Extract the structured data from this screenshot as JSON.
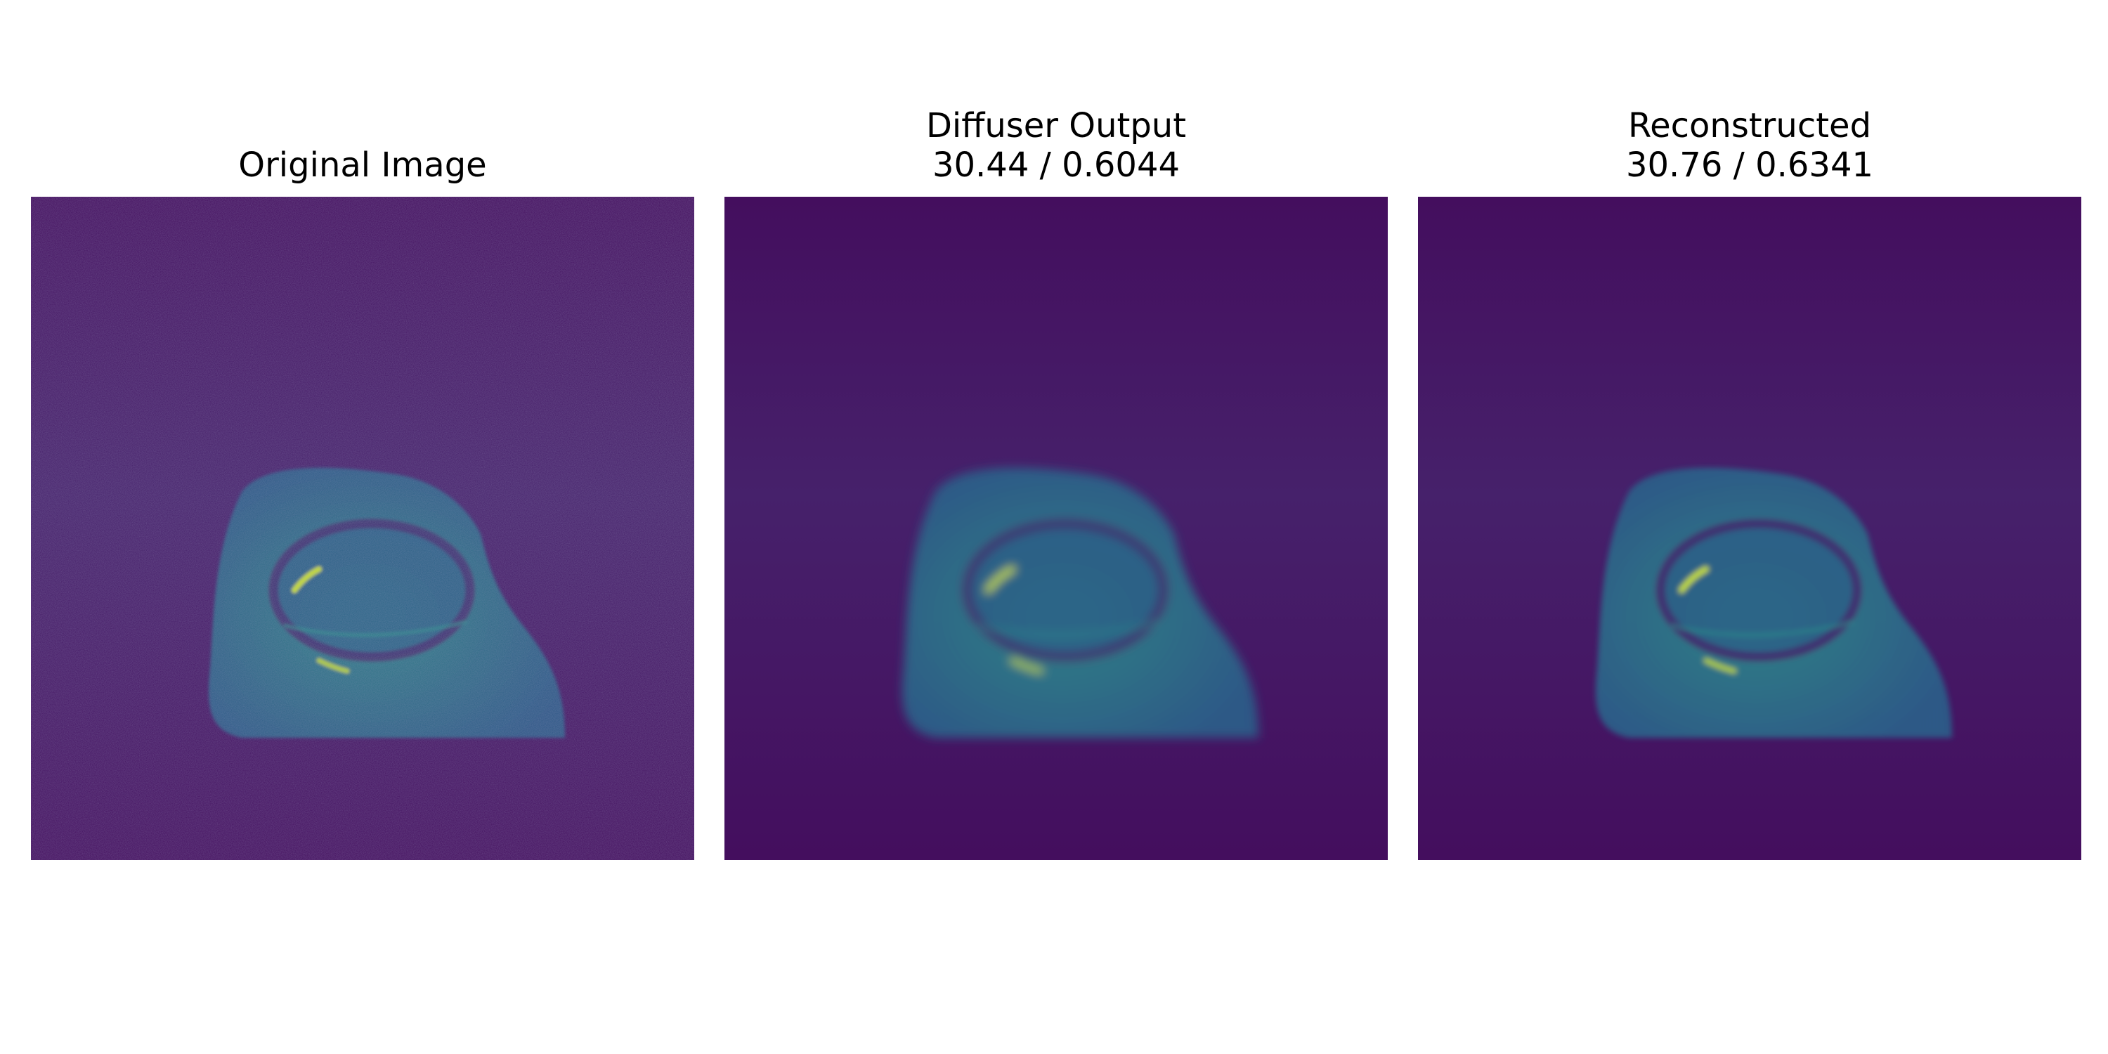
{
  "panels": [
    {
      "title": "Original Image",
      "subtitle": "",
      "image_kind": "noisy"
    },
    {
      "title": "Diffuser Output",
      "subtitle": "30.44 / 0.6044",
      "image_kind": "smooth"
    },
    {
      "title": "Reconstructed",
      "subtitle": "30.76 / 0.6341",
      "image_kind": "sharp"
    }
  ],
  "colors": {
    "background_dark": "#440e5e",
    "background_mid": "#46216b",
    "tissue": "#2a5b88",
    "tissue_bright": "#2e8c8a",
    "highlight": "#c8e02a",
    "figure_background": "#ffffff"
  }
}
